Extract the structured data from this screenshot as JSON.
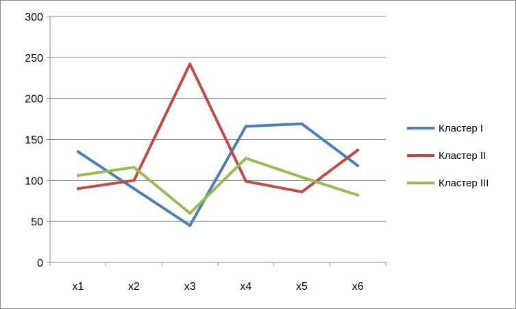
{
  "chart_data": {
    "type": "line",
    "categories": [
      "x1",
      "x2",
      "x3",
      "x4",
      "x5",
      "x6"
    ],
    "ylim": [
      0,
      300
    ],
    "yticks": [
      0,
      50,
      100,
      150,
      200,
      250,
      300
    ],
    "grid": true,
    "legend": "right",
    "series": [
      {
        "name": "Кластер I",
        "color": "#4a7ebb",
        "values": [
          135,
          90,
          45,
          166,
          169,
          118
        ]
      },
      {
        "name": "Кластер II",
        "color": "#be4b48",
        "values": [
          90,
          100,
          242,
          99,
          86,
          137
        ]
      },
      {
        "name": "Кластер III",
        "color": "#98b954",
        "values": [
          106,
          116,
          60,
          127,
          104,
          82
        ]
      }
    ]
  }
}
